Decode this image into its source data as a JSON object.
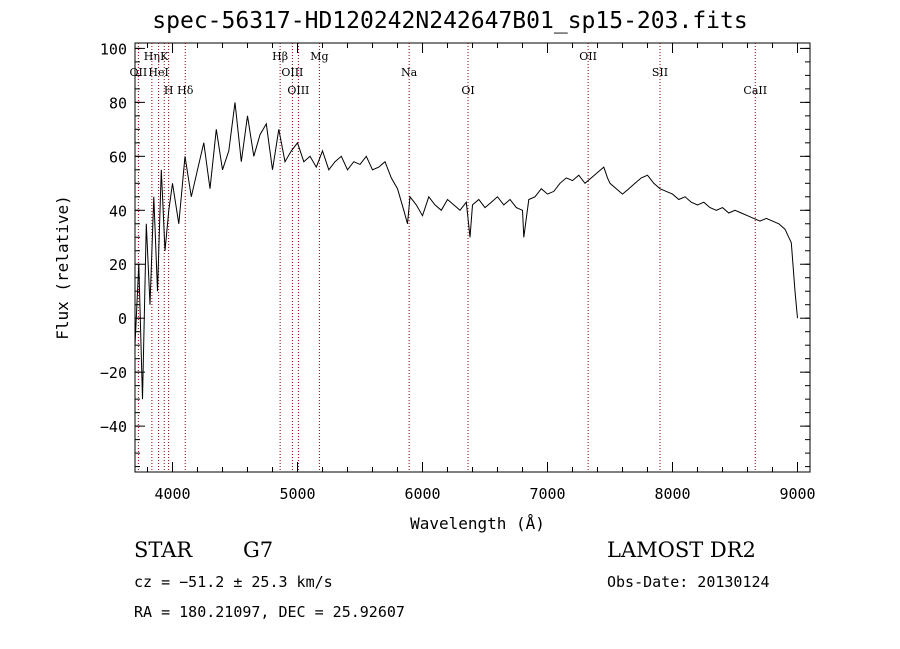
{
  "header": {
    "title": "spec-56317-HD120242N242647B01_sp15-203.fits"
  },
  "info": {
    "object_type": "STAR",
    "subclass": "G7",
    "survey": "LAMOST DR2",
    "cz": "cz = −51.2 ± 25.3 km/s",
    "obs_date": "Obs-Date: 20130124",
    "radec": "RA = 180.21097, DEC =  25.92607"
  },
  "chart_data": {
    "type": "line",
    "xlabel": "Wavelength (Å)",
    "ylabel": "Flux (relative)",
    "xlim": [
      3700,
      9100
    ],
    "ylim": [
      -57,
      102
    ],
    "xticks": [
      4000,
      5000,
      6000,
      7000,
      8000,
      9000
    ],
    "yticks": [
      -40,
      -20,
      0,
      20,
      40,
      60,
      80,
      100
    ],
    "line_color": "#000000",
    "marker_color": "#8b0000",
    "series": [
      {
        "x": [
          3700,
          3730,
          3760,
          3790,
          3820,
          3850,
          3880,
          3910,
          3940,
          3970,
          4000,
          4050,
          4100,
          4150,
          4200,
          4250,
          4300,
          4350,
          4400,
          4450,
          4500,
          4550,
          4600,
          4650,
          4700,
          4750,
          4800,
          4850,
          4900,
          4950,
          5000,
          5050,
          5100,
          5150,
          5200,
          5250,
          5300,
          5350,
          5400,
          5450,
          5500,
          5550,
          5600,
          5650,
          5700,
          5750,
          5800,
          5850,
          5880,
          5900,
          5950,
          6000,
          6050,
          6100,
          6150,
          6200,
          6250,
          6300,
          6350,
          6380,
          6400,
          6450,
          6500,
          6550,
          6600,
          6650,
          6700,
          6750,
          6800,
          6810,
          6850,
          6900,
          6950,
          7000,
          7050,
          7100,
          7150,
          7200,
          7250,
          7300,
          7350,
          7400,
          7450,
          7480,
          7500,
          7550,
          7600,
          7650,
          7700,
          7750,
          7800,
          7850,
          7900,
          7950,
          8000,
          8050,
          8100,
          8150,
          8200,
          8250,
          8300,
          8350,
          8400,
          8450,
          8500,
          8550,
          8600,
          8650,
          8700,
          8750,
          8800,
          8850,
          8900,
          8950,
          8980,
          9000
        ],
        "y": [
          -10,
          20,
          -30,
          35,
          5,
          45,
          10,
          55,
          25,
          40,
          50,
          35,
          60,
          45,
          55,
          65,
          48,
          70,
          55,
          62,
          80,
          58,
          75,
          60,
          68,
          72,
          55,
          70,
          58,
          62,
          65,
          58,
          60,
          56,
          62,
          55,
          58,
          60,
          55,
          58,
          57,
          60,
          55,
          56,
          58,
          52,
          48,
          40,
          35,
          45,
          42,
          38,
          45,
          42,
          40,
          44,
          42,
          40,
          43,
          30,
          42,
          44,
          41,
          43,
          45,
          42,
          44,
          41,
          40,
          30,
          44,
          45,
          48,
          46,
          47,
          50,
          52,
          51,
          53,
          50,
          52,
          54,
          56,
          52,
          50,
          48,
          46,
          48,
          50,
          52,
          53,
          50,
          48,
          47,
          46,
          44,
          45,
          43,
          42,
          43,
          41,
          40,
          41,
          39,
          40,
          39,
          38,
          37,
          36,
          37,
          36,
          35,
          33,
          28,
          10,
          0
        ]
      }
    ],
    "lines": [
      {
        "name": "Hη",
        "x": 3835
      },
      {
        "name": "OII",
        "x": 3727
      },
      {
        "name": "H",
        "x": 3969
      },
      {
        "name": "K",
        "x": 3934
      },
      {
        "name": "HeI",
        "x": 3889
      },
      {
        "name": "Hδ",
        "x": 4102
      },
      {
        "name": "Hβ",
        "x": 4861
      },
      {
        "name": "OIII",
        "x": 4959
      },
      {
        "name": "OIII",
        "x": 5007
      },
      {
        "name": "Mg",
        "x": 5175
      },
      {
        "name": "Na",
        "x": 5893
      },
      {
        "name": "OI",
        "x": 6364
      },
      {
        "name": "OII",
        "x": 7325
      },
      {
        "name": "SII",
        "x": 7900
      },
      {
        "name": "CaII",
        "x": 8662
      }
    ]
  }
}
